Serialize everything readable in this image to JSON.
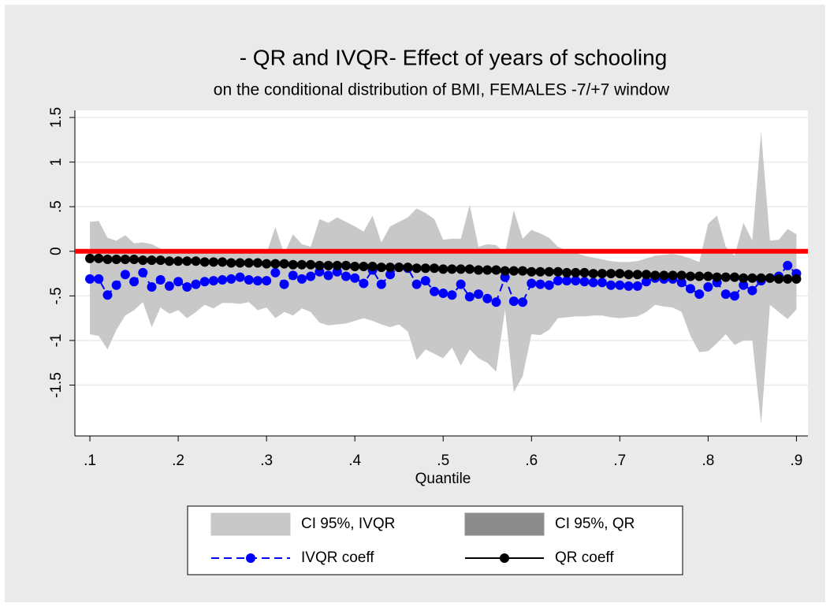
{
  "chart_data": {
    "type": "line",
    "title": "- QR and IVQR- Effect of years of schooling",
    "subtitle": "on the conditional distribution of BMI, FEMALES -7/+7 window",
    "x_label": "Quantile",
    "x": [
      0.1,
      0.11,
      0.12,
      0.13,
      0.14,
      0.15,
      0.16,
      0.17,
      0.18,
      0.19,
      0.2,
      0.21,
      0.22,
      0.23,
      0.24,
      0.25,
      0.26,
      0.27,
      0.28,
      0.29,
      0.3,
      0.31,
      0.32,
      0.33,
      0.34,
      0.35,
      0.36,
      0.37,
      0.38,
      0.39,
      0.4,
      0.41,
      0.42,
      0.43,
      0.44,
      0.45,
      0.46,
      0.47,
      0.48,
      0.49,
      0.5,
      0.51,
      0.52,
      0.53,
      0.54,
      0.55,
      0.56,
      0.57,
      0.58,
      0.59,
      0.6,
      0.61,
      0.62,
      0.63,
      0.64,
      0.65,
      0.66,
      0.67,
      0.68,
      0.69,
      0.7,
      0.71,
      0.72,
      0.73,
      0.74,
      0.75,
      0.76,
      0.77,
      0.78,
      0.79,
      0.8,
      0.81,
      0.82,
      0.83,
      0.84,
      0.85,
      0.86,
      0.87,
      0.88,
      0.89,
      0.9
    ],
    "xlim": [
      0.083,
      0.913
    ],
    "ylim": [
      -2.07,
      1.58
    ],
    "xticks": [
      {
        "value": 0.1,
        "label": ".1"
      },
      {
        "value": 0.2,
        "label": ".2"
      },
      {
        "value": 0.3,
        "label": ".3"
      },
      {
        "value": 0.4,
        "label": ".4"
      },
      {
        "value": 0.5,
        "label": ".5"
      },
      {
        "value": 0.6,
        "label": ".6"
      },
      {
        "value": 0.7,
        "label": ".7"
      },
      {
        "value": 0.8,
        "label": ".8"
      },
      {
        "value": 0.9,
        "label": ".9"
      }
    ],
    "yticks": [
      {
        "value": -1.5,
        "label": "-1.5"
      },
      -1,
      {
        "value": -0.5,
        "label": "-.5"
      },
      0,
      {
        "value": 0.5,
        "label": ".5"
      },
      1,
      {
        "value": 1.5,
        "label": "1.5"
      }
    ],
    "grid": true,
    "reference_line": {
      "value": 0,
      "color": "#ff0000"
    },
    "legend": "bottom",
    "bands": [
      {
        "name": "CI 95%, IVQR",
        "color": "#c8c8c8",
        "lower": [
          -0.93,
          -0.95,
          -1.1,
          -0.88,
          -0.72,
          -0.66,
          -0.57,
          -0.85,
          -0.63,
          -0.7,
          -0.66,
          -0.75,
          -0.68,
          -0.6,
          -0.64,
          -0.58,
          -0.58,
          -0.59,
          -0.57,
          -0.66,
          -0.63,
          -0.75,
          -0.68,
          -0.72,
          -0.64,
          -0.68,
          -0.8,
          -0.83,
          -0.82,
          -0.81,
          -0.78,
          -0.75,
          -0.78,
          -0.82,
          -0.85,
          -0.82,
          -0.9,
          -1.22,
          -1.1,
          -1.15,
          -1.2,
          -1.08,
          -1.28,
          -1.1,
          -1.2,
          -1.25,
          -1.35,
          -0.65,
          -1.58,
          -1.4,
          -0.93,
          -0.94,
          -0.88,
          -0.75,
          -0.74,
          -0.73,
          -0.73,
          -0.72,
          -0.72,
          -0.74,
          -0.75,
          -0.74,
          -0.73,
          -0.68,
          -0.6,
          -0.62,
          -0.63,
          -0.68,
          -0.95,
          -1.13,
          -1.12,
          -1.03,
          -0.93,
          -1.05,
          -1.0,
          -1.0,
          -1.94,
          -0.6,
          -0.68,
          -0.76,
          -0.65
        ],
        "upper": [
          0.33,
          0.34,
          0.15,
          0.12,
          0.18,
          0.09,
          0.1,
          0.08,
          0.03,
          0.01,
          0.0,
          -0.02,
          -0.01,
          0.0,
          -0.02,
          -0.01,
          0.01,
          0.0,
          -0.02,
          -0.03,
          -0.02,
          0.27,
          -0.03,
          0.19,
          0.08,
          0.05,
          0.36,
          0.32,
          0.38,
          0.33,
          0.28,
          0.22,
          0.4,
          0.1,
          0.28,
          0.33,
          0.38,
          0.48,
          0.43,
          0.36,
          0.13,
          0.14,
          0.14,
          0.52,
          0.05,
          0.08,
          0.07,
          -0.02,
          0.46,
          0.14,
          0.24,
          0.2,
          0.15,
          0.05,
          0.01,
          -0.02,
          -0.05,
          -0.07,
          -0.09,
          -0.11,
          -0.12,
          -0.12,
          -0.11,
          -0.08,
          -0.05,
          -0.04,
          -0.03,
          -0.05,
          -0.08,
          -0.12,
          0.31,
          0.4,
          0.05,
          -0.05,
          0.32,
          0.12,
          1.34,
          0.12,
          0.13,
          0.25,
          0.19
        ]
      },
      {
        "name": "CI 95%, QR",
        "color": "#8c8c8c",
        "lower": [
          -0.11,
          -0.11,
          -0.12,
          -0.12,
          -0.12,
          -0.12,
          -0.13,
          -0.13,
          -0.13,
          -0.14,
          -0.14,
          -0.14,
          -0.14,
          -0.15,
          -0.15,
          -0.15,
          -0.16,
          -0.16,
          -0.16,
          -0.16,
          -0.17,
          -0.17,
          -0.17,
          -0.18,
          -0.18,
          -0.18,
          -0.19,
          -0.19,
          -0.19,
          -0.19,
          -0.2,
          -0.2,
          -0.2,
          -0.21,
          -0.21,
          -0.21,
          -0.21,
          -0.22,
          -0.22,
          -0.22,
          -0.23,
          -0.23,
          -0.23,
          -0.23,
          -0.24,
          -0.24,
          -0.24,
          -0.25,
          -0.25,
          -0.25,
          -0.26,
          -0.26,
          -0.26,
          -0.26,
          -0.27,
          -0.27,
          -0.27,
          -0.28,
          -0.28,
          -0.28,
          -0.28,
          -0.29,
          -0.29,
          -0.29,
          -0.3,
          -0.3,
          -0.3,
          -0.3,
          -0.31,
          -0.31,
          -0.31,
          -0.32,
          -0.32,
          -0.32,
          -0.33,
          -0.33,
          -0.33,
          -0.33,
          -0.34,
          -0.34,
          -0.34
        ],
        "upper": [
          -0.05,
          -0.05,
          -0.06,
          -0.06,
          -0.06,
          -0.06,
          -0.07,
          -0.07,
          -0.07,
          -0.08,
          -0.08,
          -0.08,
          -0.08,
          -0.09,
          -0.09,
          -0.09,
          -0.1,
          -0.1,
          -0.1,
          -0.1,
          -0.11,
          -0.11,
          -0.11,
          -0.12,
          -0.12,
          -0.12,
          -0.13,
          -0.13,
          -0.13,
          -0.13,
          -0.14,
          -0.14,
          -0.14,
          -0.15,
          -0.15,
          -0.15,
          -0.15,
          -0.16,
          -0.16,
          -0.16,
          -0.17,
          -0.17,
          -0.17,
          -0.17,
          -0.18,
          -0.18,
          -0.18,
          -0.19,
          -0.19,
          -0.19,
          -0.2,
          -0.2,
          -0.2,
          -0.2,
          -0.21,
          -0.21,
          -0.21,
          -0.22,
          -0.22,
          -0.22,
          -0.22,
          -0.23,
          -0.23,
          -0.23,
          -0.24,
          -0.24,
          -0.24,
          -0.24,
          -0.25,
          -0.25,
          -0.25,
          -0.26,
          -0.26,
          -0.26,
          -0.27,
          -0.27,
          -0.27,
          -0.27,
          -0.28,
          -0.28,
          -0.28
        ]
      }
    ],
    "series": [
      {
        "name": "IVQR coeff",
        "color": "#0000ff",
        "dashed": true,
        "values": [
          -0.31,
          -0.31,
          -0.49,
          -0.38,
          -0.26,
          -0.34,
          -0.24,
          -0.4,
          -0.32,
          -0.39,
          -0.34,
          -0.4,
          -0.37,
          -0.34,
          -0.33,
          -0.32,
          -0.31,
          -0.29,
          -0.32,
          -0.33,
          -0.33,
          -0.24,
          -0.37,
          -0.27,
          -0.31,
          -0.28,
          -0.23,
          -0.27,
          -0.23,
          -0.28,
          -0.3,
          -0.36,
          -0.21,
          -0.37,
          -0.26,
          -0.18,
          -0.19,
          -0.37,
          -0.33,
          -0.45,
          -0.47,
          -0.49,
          -0.37,
          -0.51,
          -0.48,
          -0.53,
          -0.57,
          -0.29,
          -0.56,
          -0.57,
          -0.36,
          -0.37,
          -0.38,
          -0.33,
          -0.33,
          -0.33,
          -0.34,
          -0.35,
          -0.35,
          -0.38,
          -0.38,
          -0.39,
          -0.39,
          -0.34,
          -0.3,
          -0.31,
          -0.31,
          -0.35,
          -0.42,
          -0.48,
          -0.4,
          -0.35,
          -0.48,
          -0.5,
          -0.38,
          -0.44,
          -0.33,
          -0.3,
          -0.28,
          -0.16,
          -0.25
        ]
      },
      {
        "name": "QR coeff",
        "color": "#000000",
        "dashed": false,
        "values": [
          -0.08,
          -0.08,
          -0.09,
          -0.09,
          -0.09,
          -0.09,
          -0.1,
          -0.1,
          -0.1,
          -0.11,
          -0.11,
          -0.11,
          -0.11,
          -0.12,
          -0.12,
          -0.12,
          -0.13,
          -0.13,
          -0.13,
          -0.13,
          -0.14,
          -0.14,
          -0.14,
          -0.15,
          -0.15,
          -0.15,
          -0.16,
          -0.16,
          -0.16,
          -0.16,
          -0.17,
          -0.17,
          -0.17,
          -0.18,
          -0.18,
          -0.18,
          -0.18,
          -0.19,
          -0.19,
          -0.19,
          -0.2,
          -0.2,
          -0.2,
          -0.2,
          -0.21,
          -0.21,
          -0.21,
          -0.22,
          -0.22,
          -0.22,
          -0.23,
          -0.23,
          -0.23,
          -0.23,
          -0.24,
          -0.24,
          -0.24,
          -0.25,
          -0.25,
          -0.25,
          -0.25,
          -0.26,
          -0.26,
          -0.26,
          -0.27,
          -0.27,
          -0.27,
          -0.27,
          -0.28,
          -0.28,
          -0.28,
          -0.29,
          -0.29,
          -0.29,
          -0.3,
          -0.3,
          -0.3,
          -0.3,
          -0.31,
          -0.31,
          -0.31
        ]
      }
    ]
  }
}
